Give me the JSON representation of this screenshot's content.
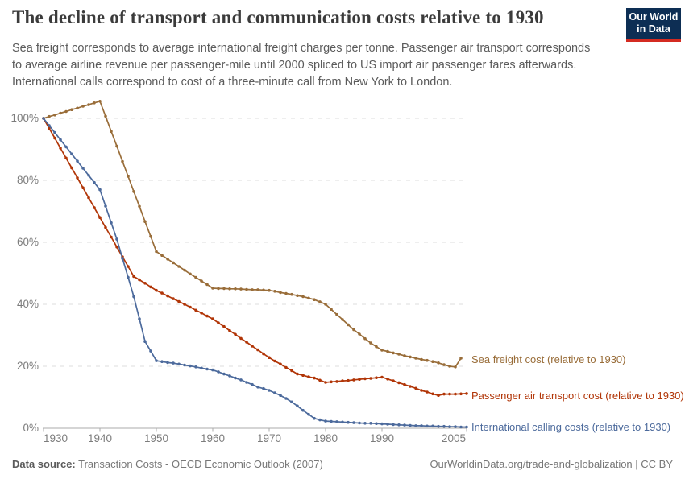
{
  "logo": {
    "line1": "Our World",
    "line2": "in Data"
  },
  "footer": {
    "datasource_label": "Data source:",
    "datasource_value": " Transaction Costs - OECD Economic Outlook (2007)",
    "link": "OurWorldinData.org/trade-and-globalization | CC BY"
  },
  "chart_data": {
    "type": "line",
    "title": "The decline of transport and communication costs relative to 1930",
    "subtitle": "Sea freight corresponds to average international freight charges per tonne. Passenger air transport corresponds\nto average airline revenue per passenger-mile until 2000 spliced to US import air passenger fares afterwards.\nInternational calls correspond to cost of a three-minute call from New York to London.",
    "xlabel": "",
    "ylabel": "",
    "xlim": [
      1930,
      2005
    ],
    "ylim": [
      0,
      106
    ],
    "grid": "dashed-horizontal",
    "legend_position": "right-of-line-ends",
    "y_ticks": [
      {
        "value": 0,
        "label": "0%"
      },
      {
        "value": 20,
        "label": "20%"
      },
      {
        "value": 40,
        "label": "40%"
      },
      {
        "value": 60,
        "label": "60%"
      },
      {
        "value": 80,
        "label": "80%"
      },
      {
        "value": 100,
        "label": "100%"
      }
    ],
    "x_ticks": [
      {
        "year": 1930,
        "label": "1930"
      },
      {
        "year": 1940,
        "label": "1940"
      },
      {
        "year": 1950,
        "label": "1950"
      },
      {
        "year": 1960,
        "label": "1960"
      },
      {
        "year": 1970,
        "label": "1970"
      },
      {
        "year": 1980,
        "label": "1980"
      },
      {
        "year": 1990,
        "label": "1990"
      },
      {
        "year": 2005,
        "label": "2005"
      }
    ],
    "series": [
      {
        "id": "sea-freight",
        "name": "Sea freight cost (relative to 1930)",
        "color": "#996D39",
        "points": [
          [
            1930,
            100
          ],
          [
            1931,
            100.6
          ],
          [
            1932,
            101.1
          ],
          [
            1933,
            101.7
          ],
          [
            1934,
            102.2
          ],
          [
            1935,
            102.8
          ],
          [
            1936,
            103.3
          ],
          [
            1937,
            103.9
          ],
          [
            1938,
            104.4
          ],
          [
            1939,
            105
          ],
          [
            1940,
            105.5
          ],
          [
            1941,
            100.7
          ],
          [
            1942,
            95.8
          ],
          [
            1943,
            91
          ],
          [
            1944,
            86.1
          ],
          [
            1945,
            81.3
          ],
          [
            1946,
            76.4
          ],
          [
            1947,
            71.6
          ],
          [
            1948,
            66.7
          ],
          [
            1949,
            61.9
          ],
          [
            1950,
            57
          ],
          [
            1951,
            55.8
          ],
          [
            1952,
            54.6
          ],
          [
            1953,
            53.4
          ],
          [
            1954,
            52.2
          ],
          [
            1955,
            51
          ],
          [
            1956,
            49.8
          ],
          [
            1957,
            48.7
          ],
          [
            1958,
            47.5
          ],
          [
            1959,
            46.4
          ],
          [
            1960,
            45.2
          ],
          [
            1961,
            45.1
          ],
          [
            1962,
            45.1
          ],
          [
            1963,
            45
          ],
          [
            1964,
            45
          ],
          [
            1965,
            44.9
          ],
          [
            1966,
            44.8
          ],
          [
            1967,
            44.7
          ],
          [
            1968,
            44.7
          ],
          [
            1969,
            44.6
          ],
          [
            1970,
            44.5
          ],
          [
            1971,
            44.2
          ],
          [
            1972,
            43.8
          ],
          [
            1973,
            43.5
          ],
          [
            1974,
            43.2
          ],
          [
            1975,
            42.8
          ],
          [
            1976,
            42.5
          ],
          [
            1977,
            42
          ],
          [
            1978,
            41.5
          ],
          [
            1979,
            40.8
          ],
          [
            1980,
            40
          ],
          [
            1981,
            38.4
          ],
          [
            1982,
            36.7
          ],
          [
            1983,
            35.1
          ],
          [
            1984,
            33.4
          ],
          [
            1985,
            31.8
          ],
          [
            1986,
            30.4
          ],
          [
            1987,
            28.9
          ],
          [
            1988,
            27.5
          ],
          [
            1989,
            26.3
          ],
          [
            1990,
            25.2
          ],
          [
            1991,
            24.8
          ],
          [
            1992,
            24.3
          ],
          [
            1993,
            23.9
          ],
          [
            1994,
            23.4
          ],
          [
            1995,
            23
          ],
          [
            1996,
            22.6
          ],
          [
            1997,
            22.2
          ],
          [
            1998,
            21.9
          ],
          [
            1999,
            21.5
          ],
          [
            2000,
            21.1
          ],
          [
            2001,
            20.5
          ],
          [
            2002,
            20
          ],
          [
            2003,
            19.8
          ],
          [
            2004,
            22.6
          ]
        ]
      },
      {
        "id": "passenger-air",
        "name": "Passenger air transport cost (relative to 1930)",
        "color": "#B13507",
        "points": [
          [
            1930,
            100
          ],
          [
            1931,
            96.8
          ],
          [
            1932,
            93.6
          ],
          [
            1933,
            90.4
          ],
          [
            1934,
            87.2
          ],
          [
            1935,
            84
          ],
          [
            1936,
            80.8
          ],
          [
            1937,
            77.6
          ],
          [
            1938,
            74.4
          ],
          [
            1939,
            71.2
          ],
          [
            1940,
            68
          ],
          [
            1941,
            64.8
          ],
          [
            1942,
            61.7
          ],
          [
            1943,
            58.5
          ],
          [
            1944,
            55.3
          ],
          [
            1945,
            52.2
          ],
          [
            1946,
            49
          ],
          [
            1947,
            47.9
          ],
          [
            1948,
            46.8
          ],
          [
            1949,
            45.6
          ],
          [
            1950,
            44.5
          ],
          [
            1951,
            43.6
          ],
          [
            1952,
            42.7
          ],
          [
            1953,
            41.8
          ],
          [
            1954,
            40.9
          ],
          [
            1955,
            40
          ],
          [
            1956,
            39.1
          ],
          [
            1957,
            38.1
          ],
          [
            1958,
            37.2
          ],
          [
            1959,
            36.2
          ],
          [
            1960,
            35.3
          ],
          [
            1961,
            34
          ],
          [
            1962,
            32.8
          ],
          [
            1963,
            31.5
          ],
          [
            1964,
            30.3
          ],
          [
            1965,
            29
          ],
          [
            1966,
            27.8
          ],
          [
            1967,
            26.5
          ],
          [
            1968,
            25.3
          ],
          [
            1969,
            24
          ],
          [
            1970,
            22.8
          ],
          [
            1971,
            21.7
          ],
          [
            1972,
            20.7
          ],
          [
            1973,
            19.6
          ],
          [
            1974,
            18.6
          ],
          [
            1975,
            17.5
          ],
          [
            1976,
            17.1
          ],
          [
            1977,
            16.6
          ],
          [
            1978,
            16.2
          ],
          [
            1979,
            15.5
          ],
          [
            1980,
            14.8
          ],
          [
            1981,
            15
          ],
          [
            1982,
            15.1
          ],
          [
            1983,
            15.3
          ],
          [
            1984,
            15.4
          ],
          [
            1985,
            15.6
          ],
          [
            1986,
            15.8
          ],
          [
            1987,
            16
          ],
          [
            1988,
            16.1
          ],
          [
            1989,
            16.3
          ],
          [
            1990,
            16.5
          ],
          [
            1991,
            15.9
          ],
          [
            1992,
            15.3
          ],
          [
            1993,
            14.7
          ],
          [
            1994,
            14.1
          ],
          [
            1995,
            13.5
          ],
          [
            1996,
            12.9
          ],
          [
            1997,
            12.2
          ],
          [
            1998,
            11.7
          ],
          [
            1999,
            11.1
          ],
          [
            2000,
            10.6
          ],
          [
            2001,
            11
          ],
          [
            2002,
            11
          ],
          [
            2003,
            11
          ],
          [
            2004,
            11.1
          ],
          [
            2005,
            11.2
          ]
        ]
      },
      {
        "id": "international-calls",
        "name": "International calling costs (relative to 1930)",
        "color": "#4C6A9C",
        "points": [
          [
            1930,
            100
          ],
          [
            1931,
            97.7
          ],
          [
            1932,
            95.4
          ],
          [
            1933,
            93.1
          ],
          [
            1934,
            90.8
          ],
          [
            1935,
            88.5
          ],
          [
            1936,
            86.2
          ],
          [
            1937,
            83.9
          ],
          [
            1938,
            81.6
          ],
          [
            1939,
            79.3
          ],
          [
            1940,
            77
          ],
          [
            1941,
            71.7
          ],
          [
            1942,
            66.3
          ],
          [
            1943,
            61
          ],
          [
            1944,
            54.8
          ],
          [
            1945,
            48.7
          ],
          [
            1946,
            42.5
          ],
          [
            1947,
            35.3
          ],
          [
            1948,
            28
          ],
          [
            1949,
            24.9
          ],
          [
            1950,
            21.8
          ],
          [
            1951,
            21.5
          ],
          [
            1952,
            21.2
          ],
          [
            1953,
            21
          ],
          [
            1954,
            20.7
          ],
          [
            1955,
            20.4
          ],
          [
            1956,
            20.1
          ],
          [
            1957,
            19.8
          ],
          [
            1958,
            19.4
          ],
          [
            1959,
            19.1
          ],
          [
            1960,
            18.8
          ],
          [
            1961,
            18.2
          ],
          [
            1962,
            17.5
          ],
          [
            1963,
            16.9
          ],
          [
            1964,
            16.2
          ],
          [
            1965,
            15.6
          ],
          [
            1966,
            14.8
          ],
          [
            1967,
            14.1
          ],
          [
            1968,
            13.3
          ],
          [
            1969,
            12.8
          ],
          [
            1970,
            12.2
          ],
          [
            1971,
            11.4
          ],
          [
            1972,
            10.6
          ],
          [
            1973,
            9.6
          ],
          [
            1974,
            8.5
          ],
          [
            1975,
            7.2
          ],
          [
            1976,
            5.8
          ],
          [
            1977,
            4.5
          ],
          [
            1978,
            3.2
          ],
          [
            1979,
            2.7
          ],
          [
            1980,
            2.3
          ],
          [
            1981,
            2.2
          ],
          [
            1982,
            2.1
          ],
          [
            1983,
            2
          ],
          [
            1984,
            1.9
          ],
          [
            1985,
            1.8
          ],
          [
            1986,
            1.7
          ],
          [
            1987,
            1.6
          ],
          [
            1988,
            1.6
          ],
          [
            1989,
            1.5
          ],
          [
            1990,
            1.4
          ],
          [
            1991,
            1.3
          ],
          [
            1992,
            1.2
          ],
          [
            1993,
            1.1
          ],
          [
            1994,
            1
          ],
          [
            1995,
            0.9
          ],
          [
            1996,
            0.8
          ],
          [
            1997,
            0.8
          ],
          [
            1998,
            0.7
          ],
          [
            1999,
            0.7
          ],
          [
            2000,
            0.6
          ],
          [
            2001,
            0.6
          ],
          [
            2002,
            0.5
          ],
          [
            2003,
            0.5
          ],
          [
            2004,
            0.4
          ],
          [
            2005,
            0.4
          ]
        ]
      }
    ]
  }
}
